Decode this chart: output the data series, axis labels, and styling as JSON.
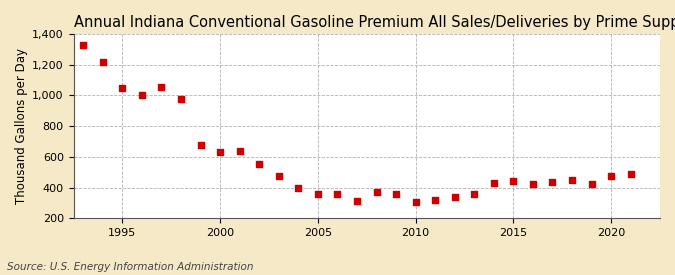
{
  "title": "Annual Indiana Conventional Gasoline Premium All Sales/Deliveries by Prime Supplier",
  "ylabel": "Thousand Gallons per Day",
  "source": "Source: U.S. Energy Information Administration",
  "figure_bg_color": "#f5e9c8",
  "axes_bg_color": "#ffffff",
  "marker_color": "#cc0000",
  "grid_color": "#aaaaaa",
  "years": [
    1993,
    1994,
    1995,
    1996,
    1997,
    1998,
    1999,
    2000,
    2001,
    2002,
    2003,
    2004,
    2005,
    2006,
    2007,
    2008,
    2009,
    2010,
    2011,
    2012,
    2013,
    2014,
    2015,
    2016,
    2017,
    2018,
    2019,
    2020,
    2021
  ],
  "values": [
    1330,
    1220,
    1045,
    1000,
    1055,
    975,
    680,
    630,
    640,
    555,
    475,
    400,
    355,
    355,
    310,
    370,
    360,
    305,
    320,
    340,
    360,
    430,
    445,
    425,
    435,
    450,
    425,
    475,
    490
  ],
  "ylim": [
    200,
    1400
  ],
  "xlim": [
    1992.5,
    2022.5
  ],
  "yticks": [
    200,
    400,
    600,
    800,
    1000,
    1200,
    1400
  ],
  "xticks": [
    1995,
    2000,
    2005,
    2010,
    2015,
    2020
  ],
  "title_fontsize": 10.5,
  "label_fontsize": 8.5,
  "tick_fontsize": 8,
  "source_fontsize": 7.5,
  "marker_size": 16
}
